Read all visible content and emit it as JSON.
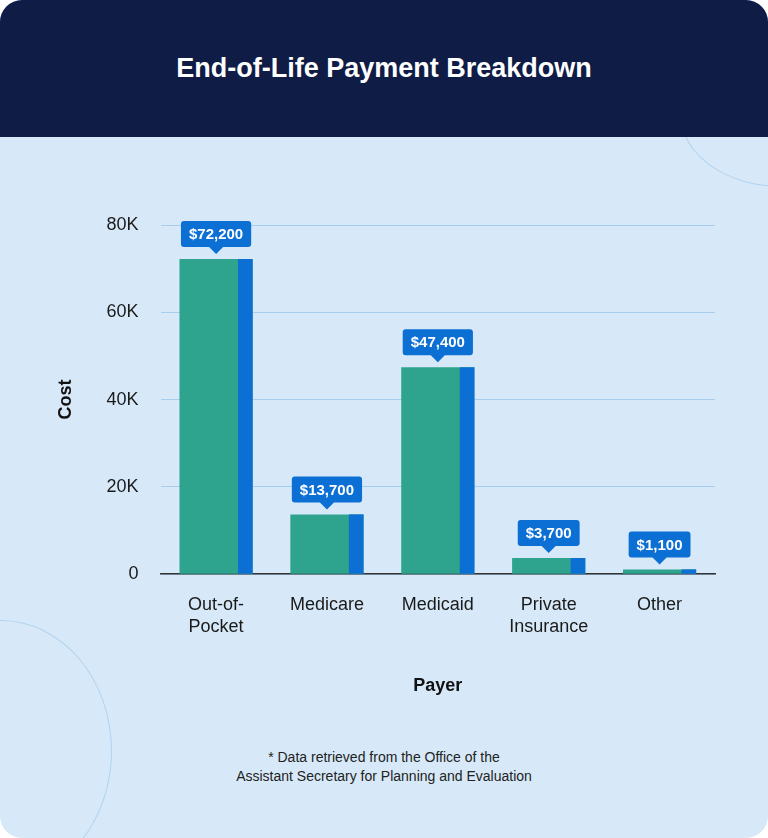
{
  "chart_data": {
    "type": "bar",
    "title": "End-of-Life Payment Breakdown",
    "x_label": "Payer",
    "y_label": "Cost",
    "categories": [
      [
        "Out-of-",
        "Pocket"
      ],
      "Medicare",
      "Medicaid",
      [
        "Private",
        "Insurance"
      ],
      "Other"
    ],
    "values": [
      72200,
      13700,
      47400,
      3700,
      1100
    ],
    "value_labels": [
      "$72,200",
      "$13,700",
      "$47,400",
      "$3,700",
      "$1,100"
    ],
    "color": "#2ea38d",
    "ylim": [
      0,
      80000
    ],
    "yticks": [
      {
        "value": 0,
        "label": "0"
      },
      {
        "value": 20000,
        "label": "20K"
      },
      {
        "value": 40000,
        "label": "40K"
      },
      {
        "value": 60000,
        "label": "60K"
      },
      {
        "value": 80000,
        "label": "80K"
      }
    ],
    "grid": true,
    "data_labels": true,
    "footnote": [
      "* Data retrieved from the Office of the",
      "Assistant Secretary for Planning and Evaluation"
    ]
  }
}
